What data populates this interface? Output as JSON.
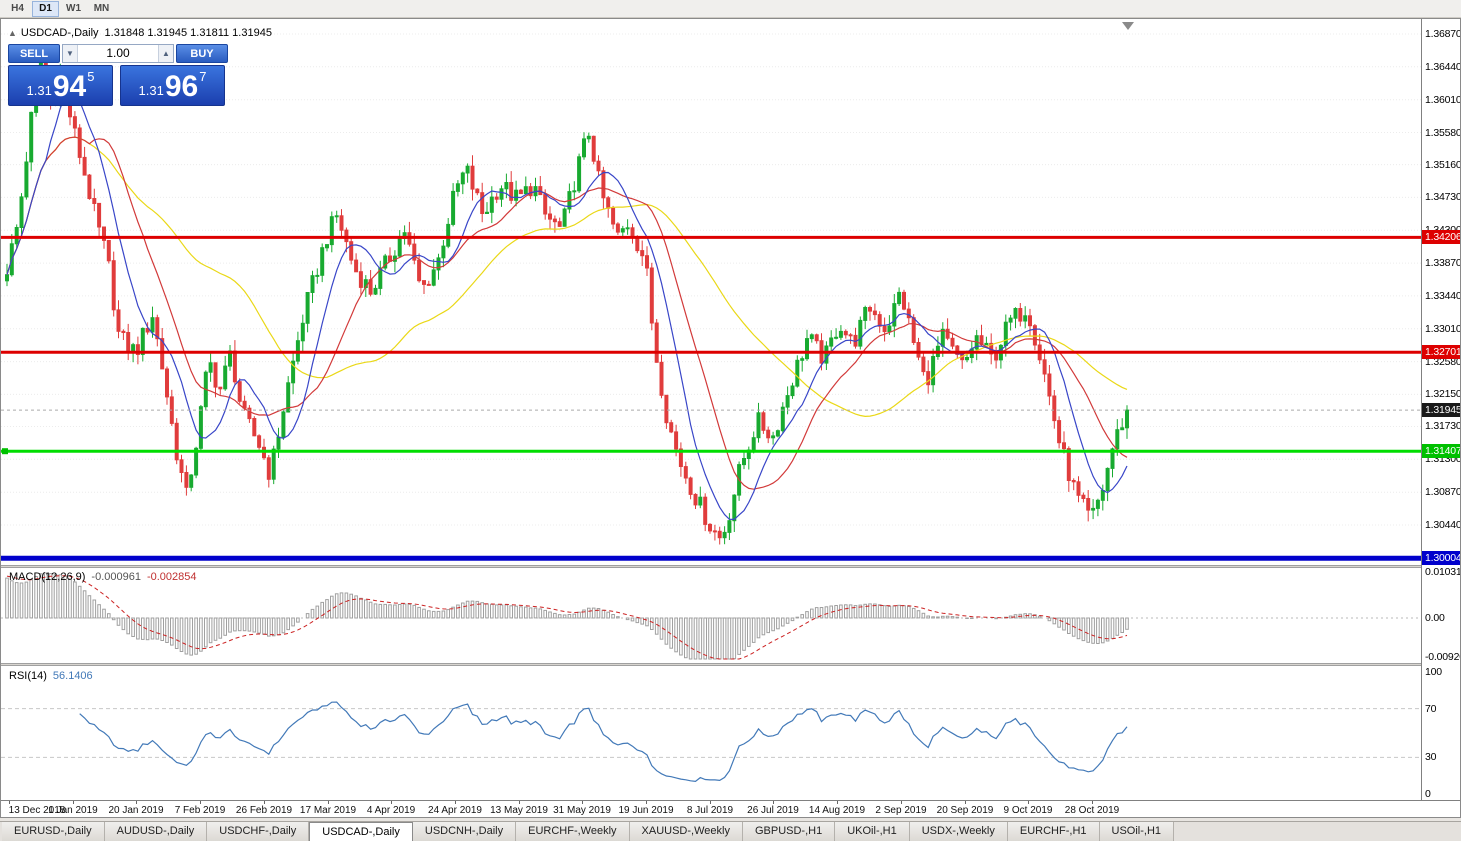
{
  "toolbar": {
    "timeframes": [
      "H4",
      "D1",
      "W1",
      "MN"
    ],
    "active": "D1"
  },
  "chart": {
    "collapse_icon": "▲",
    "title": "USDCAD-,Daily",
    "ohlc": "1.31848 1.31945 1.31811 1.31945"
  },
  "one_click": {
    "sell_label": "SELL",
    "buy_label": "BUY",
    "volume": "1.00",
    "vol_down_icon": "▼",
    "vol_up_icon": "▲",
    "bid": {
      "prefix": "1.31",
      "big": "94",
      "sup": "5"
    },
    "ask": {
      "prefix": "1.31",
      "big": "96",
      "sup": "7"
    }
  },
  "price_scale": {
    "ticks": [
      "1.36870",
      "1.36440",
      "1.36010",
      "1.35580",
      "1.35160",
      "1.34730",
      "1.34300",
      "1.33870",
      "1.33440",
      "1.33010",
      "1.32580",
      "1.32150",
      "1.31730",
      "1.31300",
      "1.30870",
      "1.30440"
    ],
    "tags": [
      {
        "text": "1.34206",
        "bg": "#dd0000"
      },
      {
        "text": "1.32701",
        "bg": "#dd0000"
      },
      {
        "text": "1.31945",
        "bg": "#1a1a1a"
      },
      {
        "text": "1.31407",
        "bg": "#00c000"
      },
      {
        "text": "1.30004",
        "bg": "#0000cc"
      }
    ]
  },
  "levels": [
    {
      "price": 1.34206,
      "color": "#dd0000",
      "width": 3
    },
    {
      "price": 1.32701,
      "color": "#dd0000",
      "width": 3
    },
    {
      "price": 1.31407,
      "color": "#00dd00",
      "width": 3
    },
    {
      "price": 1.30004,
      "color": "#0000cc",
      "width": 5
    }
  ],
  "current_price": 1.31945,
  "chart_data": {
    "type": "candlestick",
    "symbol": "USDCAD",
    "timeframe": "Daily",
    "title": "USDCAD-,Daily",
    "ylim": [
      1.299,
      1.371
    ],
    "bull_color": "#18aa30",
    "bear_color": "#e03c3c",
    "candles_count": 232,
    "price_path": [
      [
        0.0,
        1.338
      ],
      [
        0.01,
        1.344
      ],
      [
        0.022,
        1.358
      ],
      [
        0.03,
        1.365
      ],
      [
        0.04,
        1.3595
      ],
      [
        0.048,
        1.3635
      ],
      [
        0.058,
        1.357
      ],
      [
        0.07,
        1.35
      ],
      [
        0.08,
        1.344
      ],
      [
        0.09,
        1.339
      ],
      [
        0.1,
        1.329
      ],
      [
        0.115,
        1.327
      ],
      [
        0.13,
        1.332
      ],
      [
        0.14,
        1.324
      ],
      [
        0.15,
        1.315
      ],
      [
        0.16,
        1.308
      ],
      [
        0.17,
        1.316
      ],
      [
        0.18,
        1.326
      ],
      [
        0.19,
        1.322
      ],
      [
        0.2,
        1.327
      ],
      [
        0.21,
        1.319
      ],
      [
        0.225,
        1.315
      ],
      [
        0.235,
        1.311
      ],
      [
        0.25,
        1.322
      ],
      [
        0.265,
        1.332
      ],
      [
        0.285,
        1.342
      ],
      [
        0.295,
        1.345
      ],
      [
        0.31,
        1.338
      ],
      [
        0.325,
        1.335
      ],
      [
        0.34,
        1.339
      ],
      [
        0.355,
        1.343
      ],
      [
        0.37,
        1.335
      ],
      [
        0.385,
        1.339
      ],
      [
        0.4,
        1.348
      ],
      [
        0.41,
        1.351
      ],
      [
        0.425,
        1.345
      ],
      [
        0.44,
        1.349
      ],
      [
        0.456,
        1.347
      ],
      [
        0.47,
        1.349
      ],
      [
        0.48,
        1.345
      ],
      [
        0.495,
        1.343
      ],
      [
        0.513,
        1.353
      ],
      [
        0.52,
        1.356
      ],
      [
        0.53,
        1.348
      ],
      [
        0.545,
        1.342
      ],
      [
        0.555,
        1.344
      ],
      [
        0.57,
        1.339
      ],
      [
        0.578,
        1.328
      ],
      [
        0.59,
        1.318
      ],
      [
        0.6,
        1.313
      ],
      [
        0.615,
        1.308
      ],
      [
        0.629,
        1.304
      ],
      [
        0.638,
        1.3025
      ],
      [
        0.645,
        1.306
      ],
      [
        0.655,
        1.312
      ],
      [
        0.67,
        1.318
      ],
      [
        0.684,
        1.316
      ],
      [
        0.7,
        1.323
      ],
      [
        0.715,
        1.329
      ],
      [
        0.73,
        1.326
      ],
      [
        0.743,
        1.331
      ],
      [
        0.755,
        1.328
      ],
      [
        0.77,
        1.333
      ],
      [
        0.785,
        1.33
      ],
      [
        0.798,
        1.335
      ],
      [
        0.81,
        1.328
      ],
      [
        0.82,
        1.323
      ],
      [
        0.835,
        1.329
      ],
      [
        0.854,
        1.325
      ],
      [
        0.865,
        1.329
      ],
      [
        0.88,
        1.326
      ],
      [
        0.895,
        1.331
      ],
      [
        0.911,
        1.333
      ],
      [
        0.925,
        1.325
      ],
      [
        0.94,
        1.315
      ],
      [
        0.955,
        1.308
      ],
      [
        0.968,
        1.305
      ],
      [
        0.978,
        1.309
      ],
      [
        0.988,
        1.315
      ],
      [
        1.0,
        1.31945
      ]
    ],
    "moving_averages": [
      {
        "period": 45,
        "color": "#ead817"
      },
      {
        "period": 18,
        "color": "#d23a3a"
      },
      {
        "period": 9,
        "color": "#3946c8"
      }
    ],
    "macd": {
      "label": "MACD(12,26,9)",
      "value_main": "-0.000961",
      "value_signal": "-0.002854",
      "scale_max": "0.010311",
      "scale_zero": "0.00",
      "scale_min": "-0.00920",
      "histogram_color": "#a0a0a0",
      "signal_color": "#cc2222"
    },
    "rsi": {
      "label": "RSI(14)",
      "value": "56.1406",
      "color": "#4279b8",
      "levels": [
        70,
        30
      ],
      "scale": [
        "100",
        "70",
        "30",
        "0"
      ]
    },
    "dates": [
      "13 Dec 2018",
      "1 Jan 2019",
      "20 Jan 2019",
      "7 Feb 2019",
      "26 Feb 2019",
      "17 Mar 2019",
      "4 Apr 2019",
      "24 Apr 2019",
      "13 May 2019",
      "31 May 2019",
      "19 Jun 2019",
      "8 Jul 2019",
      "26 Jul 2019",
      "14 Aug 2019",
      "2 Sep 2019",
      "20 Sep 2019",
      "9 Oct 2019",
      "28 Oct 2019"
    ]
  },
  "tabs": [
    "EURUSD-,Daily",
    "AUDUSD-,Daily",
    "USDCHF-,Daily",
    "USDCAD-,Daily",
    "USDCNH-,Daily",
    "EURCHF-,Weekly",
    "XAUUSD-,Weekly",
    "GBPUSD-,H1",
    "UKOil-,H1",
    "USDX-,Weekly",
    "EURCHF-,H1",
    "USOil-,H1"
  ],
  "active_tab": "USDCAD-,Daily"
}
